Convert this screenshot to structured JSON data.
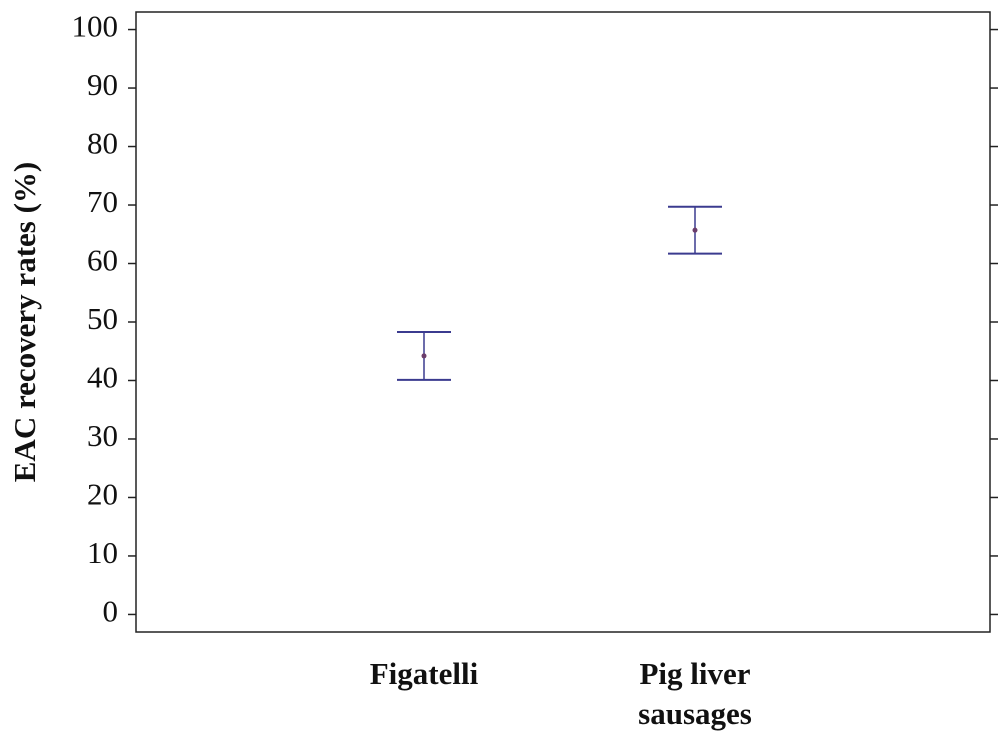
{
  "chart_data": {
    "type": "errorbar",
    "ylabel": "EAC recovery rates (%)",
    "categories": [
      "Figatelli",
      "Pig liver sausages"
    ],
    "series": [
      {
        "color": "#3b3b8f",
        "values": [
          44.2,
          65.7
        ],
        "errors": [
          4.1,
          4.0
        ]
      }
    ],
    "ylim": [
      -3,
      103
    ],
    "yticks": [
      0,
      10,
      20,
      30,
      40,
      50,
      60,
      70,
      80,
      90,
      100
    ]
  }
}
